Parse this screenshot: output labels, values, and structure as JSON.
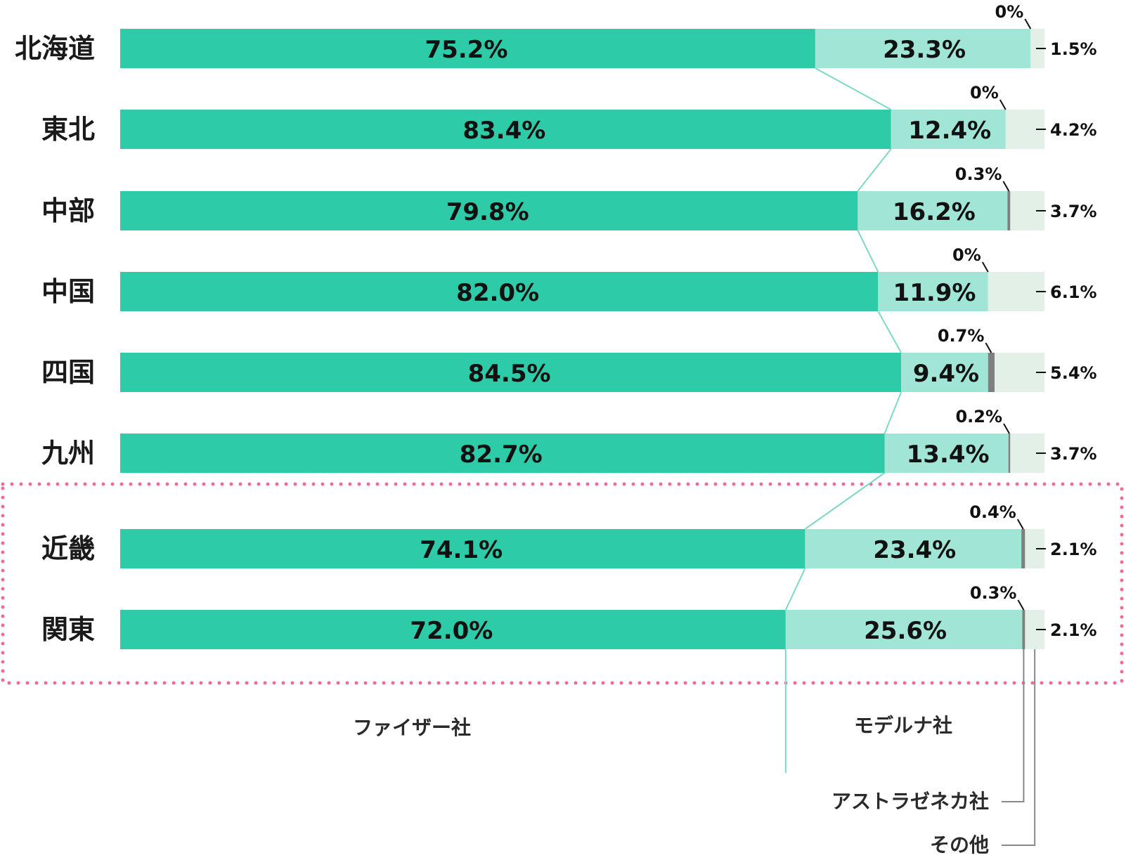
{
  "chart_data": {
    "type": "bar",
    "orientation": "horizontal",
    "stacked": true,
    "percent": true,
    "categories": [
      "北海道",
      "東北",
      "中部",
      "中国",
      "四国",
      "九州",
      "近畿",
      "関東"
    ],
    "series": [
      {
        "name": "ファイザー社",
        "color": "#2ecba8",
        "values": [
          75.2,
          83.4,
          79.8,
          82.0,
          84.5,
          82.7,
          74.1,
          72.0
        ],
        "labels": [
          "75.2%",
          "83.4%",
          "79.8%",
          "82.0%",
          "84.5%",
          "82.7%",
          "74.1%",
          "72.0%"
        ]
      },
      {
        "name": "モデルナ社",
        "color": "#a0e5d5",
        "values": [
          23.3,
          12.4,
          16.2,
          11.9,
          9.4,
          13.4,
          23.4,
          25.6
        ],
        "labels": [
          "23.3%",
          "12.4%",
          "16.2%",
          "11.9%",
          "9.4%",
          "13.4%",
          "23.4%",
          "25.6%"
        ]
      },
      {
        "name": "アストラゼネカ社",
        "color": "#7f7f7f",
        "values": [
          0,
          0,
          0.3,
          0,
          0.7,
          0.2,
          0.4,
          0.3
        ],
        "labels": [
          "0%",
          "0%",
          "0.3%",
          "0%",
          "0.7%",
          "0.2%",
          "0.4%",
          "0.3%"
        ]
      },
      {
        "name": "その他",
        "color": "#e3f0e8",
        "values": [
          1.5,
          4.2,
          3.7,
          6.1,
          5.4,
          3.7,
          2.1,
          2.1
        ],
        "labels": [
          "1.5%",
          "4.2%",
          "3.7%",
          "6.1%",
          "5.4%",
          "3.7%",
          "2.1%",
          "2.1%"
        ]
      }
    ],
    "highlighted_categories": [
      "近畿",
      "関東"
    ],
    "highlight_color": "#f06a9a",
    "connector_color": "#7fd8c2",
    "xlim": [
      0,
      100
    ],
    "legend_placement": "bottom"
  }
}
